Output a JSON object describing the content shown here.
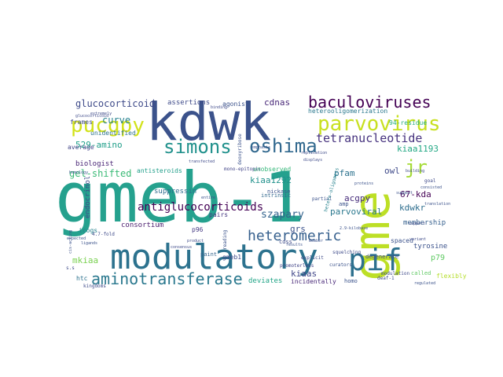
{
  "words": [
    {
      "text": "gmeb-1",
      "color": "#25a18e"
    },
    {
      "text": "kdwk",
      "color": "#3b528b"
    },
    {
      "text": "gme",
      "color": "#bddf26"
    },
    {
      "text": "modulatory",
      "color": "#2c728e"
    },
    {
      "text": "pucgpy",
      "color": "#d2e21b"
    },
    {
      "text": "parvovirus",
      "color": "#c8e020"
    },
    {
      "text": "baculoviruses",
      "color": "#440154"
    },
    {
      "text": "oshima",
      "color": "#31688e"
    },
    {
      "text": "simons",
      "color": "#21918c"
    },
    {
      "text": "pif",
      "color": "#2d708e"
    },
    {
      "text": "tetranucleotide",
      "color": "#46327e"
    },
    {
      "text": "aminotransferase",
      "color": "#2a788e"
    },
    {
      "text": "heteromeric",
      "color": "#355f8d"
    },
    {
      "text": "jr",
      "color": "#a5db36"
    },
    {
      "text": "antiglucocorticoids",
      "color": "#440154"
    },
    {
      "text": "szapary",
      "color": "#33638d"
    },
    {
      "text": "glucocorticoid",
      "color": "#3e4a89"
    },
    {
      "text": "curve",
      "color": "#26828e"
    },
    {
      "text": "529-amino",
      "color": "#1f9e89"
    },
    {
      "text": "gel-shifted",
      "color": "#3aba76"
    },
    {
      "text": "cdnas",
      "color": "#482878"
    },
    {
      "text": "pfam",
      "color": "#2c728e"
    },
    {
      "text": "owl",
      "color": "#3e4989"
    },
    {
      "text": "kiaa1193",
      "color": "#22a884"
    },
    {
      "text": "kiaa1292",
      "color": "#21918c"
    },
    {
      "text": "67-kda",
      "color": "#440154"
    },
    {
      "text": "acgpy",
      "color": "#472d7b"
    },
    {
      "text": "parvoviral",
      "color": "#2a788e"
    },
    {
      "text": "kdwkr",
      "color": "#2e6e8e"
    },
    {
      "text": "grs",
      "color": "#3b528b"
    },
    {
      "text": "mkiaa",
      "color": "#7ad151"
    },
    {
      "text": "kiaas",
      "color": "#404688"
    },
    {
      "text": "deviates",
      "color": "#20a486"
    },
    {
      "text": "p79",
      "color": "#5ec962"
    },
    {
      "text": "membership",
      "color": "#355f8d"
    },
    {
      "text": "suppressin",
      "color": "#2f6c8e"
    },
    {
      "text": "biologist",
      "color": "#482475"
    },
    {
      "text": "endocrinol",
      "color": "#3e4a89"
    },
    {
      "text": "icogs",
      "color": "#26828e"
    },
    {
      "text": "tyrosine",
      "color": "#3b528b"
    },
    {
      "text": "consortium",
      "color": "#481a6c"
    },
    {
      "text": "assertions",
      "color": "#3e4a89"
    },
    {
      "text": "antisteroids",
      "color": "#1f9e89"
    },
    {
      "text": "unidentified",
      "color": "#2c728e"
    },
    {
      "text": "frames",
      "color": "#3e4a89"
    },
    {
      "text": "average",
      "color": "#414487"
    },
    {
      "text": "agonist",
      "color": "#3b528b"
    },
    {
      "text": "heterooligomerization",
      "color": "#2a788e"
    },
    {
      "text": "94-residue",
      "color": "#29af7f"
    },
    {
      "text": "unobserved",
      "color": "#35b779"
    },
    {
      "text": "htc",
      "color": "#2c728e"
    },
    {
      "text": "gmeb1",
      "color": "#3e4a89"
    },
    {
      "text": "paint",
      "color": "#33638d"
    },
    {
      "text": "p96",
      "color": "#443983"
    },
    {
      "text": "cdss",
      "color": "#3e4a89"
    },
    {
      "text": "amp",
      "color": "#3b528b"
    },
    {
      "text": "called",
      "color": "#5ec962"
    },
    {
      "text": "spaced",
      "color": "#3b528b"
    },
    {
      "text": "incidentally",
      "color": "#482878"
    },
    {
      "text": "flexibly",
      "color": "#b5de2b"
    },
    {
      "text": "degenerate",
      "color": "#3e4a89"
    },
    {
      "text": "nickase",
      "color": "#3b528b"
    },
    {
      "text": "pairs",
      "color": "#453781"
    },
    {
      "text": "intrinsic",
      "color": "#31688e"
    },
    {
      "text": "modulation",
      "color": "#3e4a89"
    },
    {
      "text": "partial",
      "color": "#3b528b"
    },
    {
      "text": "4.7-fold",
      "color": "#3e4a89"
    },
    {
      "text": "mono-epitopic",
      "color": "#414487"
    },
    {
      "text": "deoxyribose",
      "color": "#3b528b"
    },
    {
      "text": "hetero-oligomers",
      "color": "#26828e"
    },
    {
      "text": "kingdoms",
      "color": "#3e4a89"
    },
    {
      "text": "homo",
      "color": "#3b528b"
    },
    {
      "text": "deaf-1",
      "color": "#3e4a89"
    },
    {
      "text": "curators",
      "color": "#3b528b"
    },
    {
      "text": "promoterless",
      "color": "#414487"
    },
    {
      "text": "squelching",
      "color": "#3e4a89"
    },
    {
      "text": "reading",
      "color": "#3b528b"
    },
    {
      "text": "explicit",
      "color": "#3e4a89"
    },
    {
      "text": "2.9-kilobase",
      "color": "#3b528b"
    },
    {
      "text": "s.s",
      "color": "#3e4a89"
    },
    {
      "text": "emphasis",
      "color": "#3b528b"
    },
    {
      "text": "replication",
      "color": "#3e4a89"
    },
    {
      "text": "cis-acting",
      "color": "#3b528b"
    },
    {
      "text": "goal",
      "color": "#3e4a89"
    },
    {
      "text": "consisted",
      "color": "#3b528b"
    },
    {
      "text": "building",
      "color": "#3e4a89"
    },
    {
      "text": "suggest",
      "color": "#3b528b"
    },
    {
      "text": "extremely",
      "color": "#3e4a89"
    },
    {
      "text": "homology",
      "color": "#3b528b"
    },
    {
      "text": "displays",
      "color": "#3e4a89"
    },
    {
      "text": "ligands",
      "color": "#3b528b"
    },
    {
      "text": "glucocorticoid",
      "color": "#3e4a89"
    },
    {
      "text": "expected",
      "color": "#3b528b"
    },
    {
      "text": "product",
      "color": "#3e4a89"
    },
    {
      "text": "entire",
      "color": "#3b528b"
    },
    {
      "text": "consensus",
      "color": "#3e4a89"
    },
    {
      "text": "proteins",
      "color": "#3b528b"
    },
    {
      "text": "variant",
      "color": "#3e4a89"
    },
    {
      "text": "translation",
      "color": "#3b528b"
    },
    {
      "text": "transfected",
      "color": "#3e4a89"
    },
    {
      "text": "results",
      "color": "#3b528b"
    },
    {
      "text": "binding",
      "color": "#3e4a89"
    },
    {
      "text": "regulated",
      "color": "#3b528b"
    },
    {
      "text": "support",
      "color": "#3e4a89"
    },
    {
      "text": "member",
      "color": "#3b528b"
    }
  ]
}
